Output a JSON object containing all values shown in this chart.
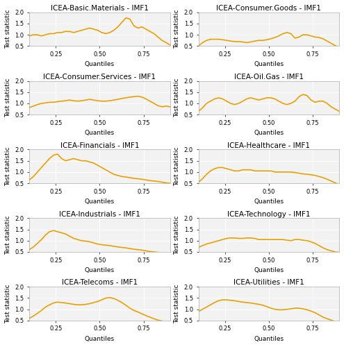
{
  "panels": [
    {
      "title": "ICEA-Basic.Materials - IMF1",
      "y": [
        0.95,
        1.0,
        1.0,
        0.95,
        1.0,
        1.05,
        1.05,
        1.1,
        1.1,
        1.15,
        1.15,
        1.1,
        1.15,
        1.2,
        1.25,
        1.3,
        1.25,
        1.2,
        1.1,
        1.05,
        1.1,
        1.2,
        1.35,
        1.55,
        1.75,
        1.7,
        1.4,
        1.3,
        1.35,
        1.25,
        1.15,
        1.05,
        0.9,
        0.75,
        0.65,
        0.55
      ]
    },
    {
      "title": "ICEA-Consumer.Goods - IMF1",
      "y": [
        0.5,
        0.65,
        0.75,
        0.8,
        0.8,
        0.8,
        0.78,
        0.75,
        0.72,
        0.7,
        0.7,
        0.68,
        0.65,
        0.68,
        0.72,
        0.75,
        0.75,
        0.78,
        0.82,
        0.88,
        0.95,
        1.05,
        1.1,
        1.05,
        0.85,
        0.9,
        1.0,
        1.0,
        0.95,
        0.9,
        0.88,
        0.82,
        0.72,
        0.62,
        0.52,
        0.45
      ]
    },
    {
      "title": "ICEA-Consumer.Services - IMF1",
      "y": [
        0.82,
        0.88,
        0.95,
        1.0,
        1.02,
        1.05,
        1.05,
        1.08,
        1.1,
        1.12,
        1.15,
        1.12,
        1.1,
        1.12,
        1.15,
        1.18,
        1.15,
        1.12,
        1.1,
        1.1,
        1.12,
        1.15,
        1.18,
        1.22,
        1.25,
        1.28,
        1.3,
        1.32,
        1.28,
        1.2,
        1.1,
        1.0,
        0.9,
        0.85,
        0.88,
        0.85
      ]
    },
    {
      "title": "ICEA-Oil.Gas - IMF1",
      "y": [
        0.65,
        0.8,
        1.0,
        1.1,
        1.2,
        1.25,
        1.2,
        1.1,
        1.0,
        0.95,
        1.0,
        1.1,
        1.2,
        1.25,
        1.2,
        1.15,
        1.2,
        1.25,
        1.25,
        1.2,
        1.1,
        1.0,
        0.95,
        1.0,
        1.1,
        1.3,
        1.4,
        1.35,
        1.15,
        1.05,
        1.1,
        1.1,
        1.0,
        0.85,
        0.75,
        0.65
      ]
    },
    {
      "title": "ICEA-Financials - IMF1",
      "y": [
        0.65,
        0.8,
        1.0,
        1.2,
        1.4,
        1.6,
        1.75,
        1.8,
        1.6,
        1.5,
        1.55,
        1.6,
        1.55,
        1.5,
        1.5,
        1.45,
        1.4,
        1.3,
        1.2,
        1.1,
        1.0,
        0.9,
        0.85,
        0.8,
        0.78,
        0.75,
        0.72,
        0.7,
        0.68,
        0.65,
        0.62,
        0.6,
        0.58,
        0.55,
        0.52,
        0.5
      ]
    },
    {
      "title": "ICEA-Healthcare - IMF1",
      "y": [
        0.55,
        0.7,
        0.9,
        1.05,
        1.15,
        1.2,
        1.2,
        1.15,
        1.1,
        1.05,
        1.05,
        1.1,
        1.1,
        1.1,
        1.05,
        1.05,
        1.05,
        1.05,
        1.05,
        1.0,
        1.0,
        1.0,
        1.0,
        1.0,
        0.98,
        0.95,
        0.92,
        0.9,
        0.88,
        0.85,
        0.8,
        0.75,
        0.68,
        0.6,
        0.52,
        0.45
      ]
    },
    {
      "title": "ICEA-Industrials - IMF1",
      "y": [
        0.6,
        0.72,
        0.88,
        1.05,
        1.25,
        1.4,
        1.45,
        1.4,
        1.35,
        1.3,
        1.2,
        1.1,
        1.05,
        1.0,
        0.98,
        0.95,
        0.9,
        0.85,
        0.82,
        0.8,
        0.78,
        0.75,
        0.72,
        0.7,
        0.68,
        0.65,
        0.62,
        0.6,
        0.58,
        0.55,
        0.52,
        0.5,
        0.48,
        0.46,
        0.44,
        0.42
      ]
    },
    {
      "title": "ICEA-Technology - IMF1",
      "y": [
        0.7,
        0.78,
        0.85,
        0.9,
        0.95,
        1.0,
        1.05,
        1.1,
        1.12,
        1.12,
        1.1,
        1.1,
        1.12,
        1.12,
        1.1,
        1.05,
        1.05,
        1.05,
        1.05,
        1.05,
        1.05,
        1.05,
        1.02,
        1.0,
        1.05,
        1.05,
        1.02,
        1.0,
        0.95,
        0.88,
        0.78,
        0.68,
        0.6,
        0.55,
        0.5,
        0.48
      ]
    },
    {
      "title": "ICEA-Telecoms - IMF1",
      "y": [
        0.6,
        0.7,
        0.82,
        0.95,
        1.1,
        1.2,
        1.28,
        1.32,
        1.3,
        1.28,
        1.25,
        1.22,
        1.2,
        1.2,
        1.22,
        1.25,
        1.3,
        1.35,
        1.42,
        1.5,
        1.52,
        1.48,
        1.4,
        1.3,
        1.18,
        1.05,
        0.95,
        0.88,
        0.8,
        0.72,
        0.65,
        0.58,
        0.52,
        0.48,
        0.44,
        0.42
      ]
    },
    {
      "title": "ICEA-Utilities - IMF1",
      "y": [
        0.9,
        1.0,
        1.1,
        1.2,
        1.3,
        1.38,
        1.42,
        1.42,
        1.4,
        1.38,
        1.35,
        1.32,
        1.3,
        1.28,
        1.25,
        1.22,
        1.18,
        1.12,
        1.05,
        1.0,
        0.98,
        0.98,
        1.0,
        1.02,
        1.05,
        1.05,
        1.02,
        0.98,
        0.92,
        0.85,
        0.75,
        0.65,
        0.58,
        0.52,
        0.46,
        0.42
      ]
    }
  ],
  "line_color": "#E8A000",
  "bg_color": "#F2F2F2",
  "grid_color": "#FFFFFF",
  "ylabel": "Test statistic",
  "xlabel": "Quantiles",
  "ylim": [
    0.5,
    2.0
  ],
  "xlim": [
    0.1,
    0.9
  ],
  "xticks": [
    0.25,
    0.5,
    0.75
  ],
  "yticks": [
    0.5,
    1.0,
    1.5,
    2.0
  ],
  "title_fontsize": 7.5,
  "label_fontsize": 6.5,
  "tick_fontsize": 6.0
}
